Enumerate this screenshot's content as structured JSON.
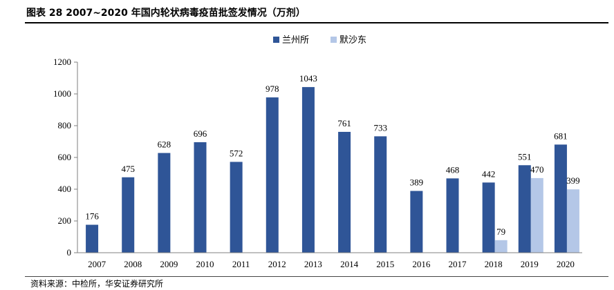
{
  "title": "图表 28 2007~2020 年国内轮状病毒疫苗批签发情况（万剂）",
  "source": "资料来源：中检所，华安证券研究所",
  "chart_data": {
    "type": "bar",
    "title": "图表 28 2007~2020 年国内轮状病毒疫苗批签发情况（万剂）",
    "categories": [
      "2007",
      "2008",
      "2009",
      "2010",
      "2011",
      "2012",
      "2013",
      "2014",
      "2015",
      "2016",
      "2017",
      "2018",
      "2019",
      "2020"
    ],
    "series": [
      {
        "name": "兰州所",
        "color": "#2F5597",
        "values": [
          176,
          475,
          628,
          696,
          572,
          978,
          1043,
          761,
          733,
          389,
          468,
          442,
          551,
          681
        ]
      },
      {
        "name": "默沙东",
        "color": "#B4C7E7",
        "values": [
          null,
          null,
          null,
          null,
          null,
          null,
          null,
          null,
          null,
          null,
          null,
          79,
          470,
          399
        ]
      }
    ],
    "ylim": [
      0,
      1200
    ],
    "yticks": [
      0,
      200,
      400,
      600,
      800,
      1000,
      1200
    ],
    "legend_position": "top-center",
    "grid": false
  }
}
